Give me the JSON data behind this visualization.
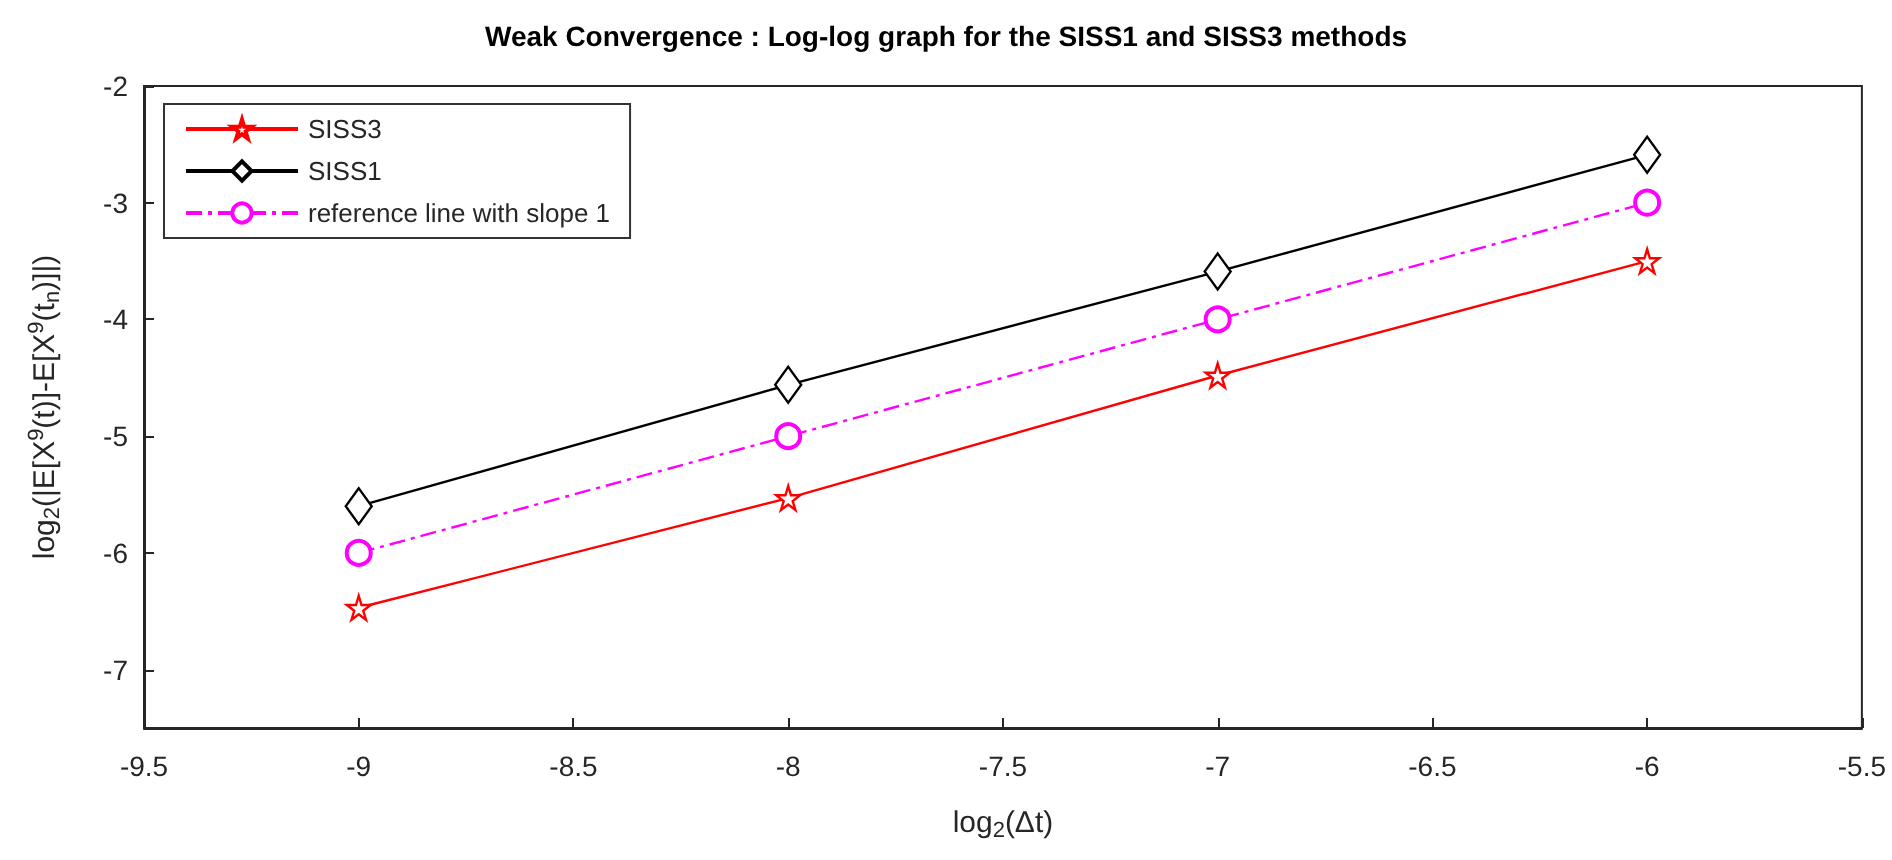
{
  "chart_data": {
    "type": "line",
    "title": "Weak Convergence : Log-log graph for the SISS1 and SISS3 methods",
    "xlabel": "log$_{2}$(Δt)",
    "ylabel": "log$_{2}$(|E[X$^{9}$(t)]-E[X$^{9}$(t$_{n}$)]|)",
    "x": [
      -9,
      -8,
      -7,
      -6
    ],
    "series": [
      {
        "name": "SISS3",
        "color": "#ff0000",
        "marker": "star",
        "line_style": "solid",
        "values": [
          -6.47,
          -5.53,
          -4.48,
          -3.5
        ]
      },
      {
        "name": "SISS1",
        "color": "#000000",
        "marker": "diamond",
        "line_style": "solid",
        "values": [
          -5.6,
          -4.56,
          -3.59,
          -2.59
        ]
      },
      {
        "name": "reference line with slope 1",
        "color": "#ff00ff",
        "marker": "circle",
        "line_style": "dashdot",
        "values": [
          -6,
          -5,
          -4,
          -3
        ]
      }
    ],
    "xlim": [
      -9.5,
      -5.5
    ],
    "xticks": [
      -9.5,
      -9,
      -8.5,
      -8,
      -7.5,
      -7,
      -6.5,
      -6,
      -5.5
    ],
    "ylim": [
      -7.5,
      -2
    ],
    "yticks": [
      -7,
      -6,
      -5,
      -4,
      -3,
      -2
    ],
    "grid": false,
    "legend": "top left"
  }
}
